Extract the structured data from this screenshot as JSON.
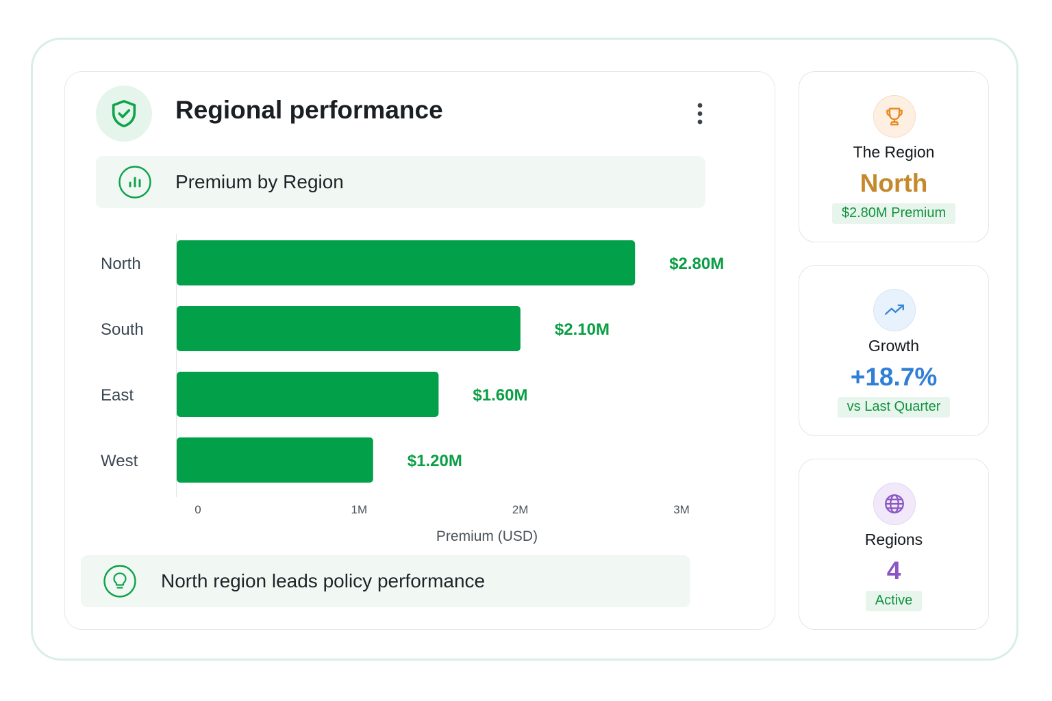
{
  "header": {
    "title": "Regional performance",
    "subtitle": "Premium by Region"
  },
  "insight": {
    "text": "North region leads policy performance"
  },
  "chart_data": {
    "type": "bar",
    "orientation": "horizontal",
    "categories": [
      "North",
      "South",
      "East",
      "West"
    ],
    "values": [
      2.8,
      2.1,
      1.6,
      1.2
    ],
    "value_labels": [
      "$2.80M",
      "$2.10M",
      "$1.60M",
      "$1.20M"
    ],
    "xlabel": "Premium (USD)",
    "ylabel": "",
    "x_ticks": [
      "0",
      "1M",
      "2M",
      "3M"
    ],
    "xlim": [
      0,
      3
    ],
    "unit": "millions USD",
    "grid": false,
    "bar_color": "#03a04a",
    "label_color": "#0a9e45"
  },
  "stats": {
    "region": {
      "label": "The Region",
      "value": "North",
      "pill": "$2.80M Premium",
      "color": "#c4892b",
      "icon": "trophy-icon"
    },
    "growth": {
      "label": "Growth",
      "value": "+18.7%",
      "pill": "vs Last Quarter",
      "color": "#2f7fd6",
      "icon": "trending-up-icon"
    },
    "regions": {
      "label": "Regions",
      "value": "4",
      "pill": "Active",
      "color": "#8a56c2",
      "icon": "globe-icon"
    }
  },
  "colors": {
    "accent_green": "#10a34a",
    "panel_bg": "#f1f7f3",
    "frame_border": "#d8efe3"
  }
}
